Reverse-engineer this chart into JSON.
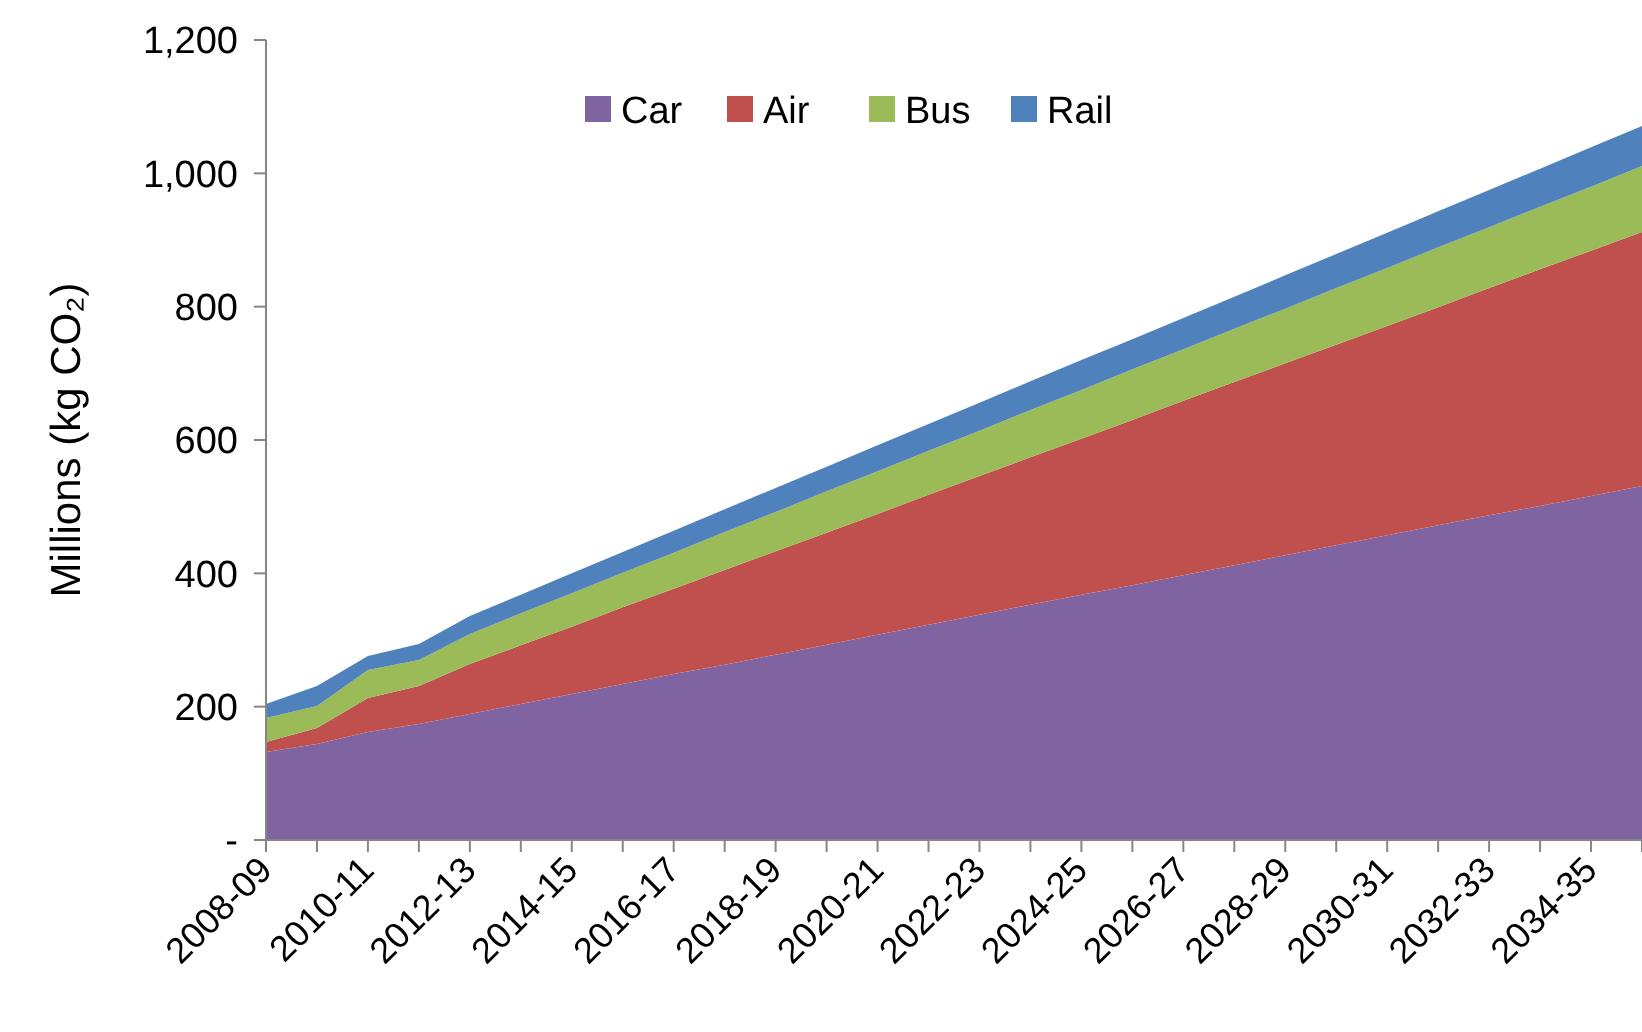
{
  "chart_data": {
    "type": "area",
    "stacked": true,
    "ylabel": "Millions (kg CO₂)",
    "categories": [
      "2008-09",
      null,
      "2010-11",
      null,
      "2012-13",
      null,
      "2014-15",
      null,
      "2016-17",
      null,
      "2018-19",
      null,
      "2020-21",
      null,
      "2022-23",
      null,
      "2024-25",
      null,
      "2026-27",
      null,
      "2028-29",
      null,
      "2030-31",
      null,
      "2032-33",
      null,
      "2034-35",
      null
    ],
    "series": [
      {
        "name": "Car",
        "color": "#8064a2",
        "values": [
          132,
          144,
          162,
          174,
          189,
          204,
          219,
          234,
          249,
          263,
          278,
          293,
          308,
          323,
          338,
          353,
          368,
          382,
          397,
          412,
          427,
          442,
          457,
          472,
          487,
          501,
          516,
          531
        ]
      },
      {
        "name": "Air",
        "color": "#c0504d",
        "values": [
          15,
          24,
          51,
          57,
          75,
          88,
          101,
          115,
          128,
          142,
          155,
          168,
          181,
          195,
          208,
          221,
          234,
          248,
          262,
          275,
          288,
          301,
          314,
          327,
          341,
          355,
          368,
          381
        ]
      },
      {
        "name": "Bus",
        "color": "#9bbb59",
        "values": [
          36,
          33,
          42,
          39,
          45,
          48,
          50,
          52,
          54,
          57,
          59,
          62,
          64,
          66,
          68,
          71,
          73,
          76,
          77,
          80,
          82,
          85,
          87,
          90,
          91,
          94,
          96,
          99
        ]
      },
      {
        "name": "Rail",
        "color": "#4f81bd",
        "values": [
          21,
          30,
          21,
          24,
          27,
          28,
          30,
          31,
          33,
          34,
          36,
          37,
          39,
          40,
          42,
          43,
          45,
          45,
          47,
          48,
          50,
          51,
          53,
          54,
          56,
          57,
          59,
          60
        ]
      }
    ],
    "ylim": [
      0,
      1200
    ],
    "yticks": [
      {
        "value": 0,
        "label": "-"
      },
      200,
      400,
      600,
      800,
      {
        "value": 1000,
        "label": "1,000"
      },
      {
        "value": 1200,
        "label": "1,200"
      }
    ],
    "grid": false,
    "legend": "top"
  }
}
